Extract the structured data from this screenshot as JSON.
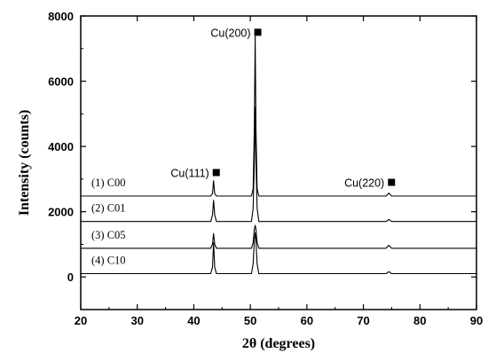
{
  "chart_data": {
    "type": "line",
    "xlabel": "2θ (degrees)",
    "ylabel": "Intensity (counts)",
    "xlim": [
      20,
      90
    ],
    "ylim": [
      -1000,
      8000
    ],
    "xticks": [
      20,
      30,
      40,
      50,
      60,
      70,
      80,
      90
    ],
    "yticks": [
      0,
      2000,
      4000,
      6000,
      8000
    ],
    "grid": false,
    "line_color": "#000000",
    "series": [
      {
        "name": "(1) C00",
        "baseline": 2480,
        "points": [
          [
            20,
            2480
          ],
          [
            43.0,
            2480
          ],
          [
            43.3,
            2560
          ],
          [
            43.5,
            2950
          ],
          [
            43.7,
            2560
          ],
          [
            44.0,
            2480
          ],
          [
            50.2,
            2480
          ],
          [
            50.5,
            2700
          ],
          [
            50.7,
            4500
          ],
          [
            50.85,
            7380
          ],
          [
            51.0,
            4500
          ],
          [
            51.2,
            2700
          ],
          [
            51.5,
            2480
          ],
          [
            74.0,
            2480
          ],
          [
            74.5,
            2570
          ],
          [
            75.0,
            2480
          ],
          [
            90,
            2480
          ]
        ]
      },
      {
        "name": "(2) C01",
        "baseline": 1700,
        "points": [
          [
            20,
            1700
          ],
          [
            43.0,
            1700
          ],
          [
            43.3,
            1900
          ],
          [
            43.5,
            2350
          ],
          [
            43.7,
            1900
          ],
          [
            44.0,
            1700
          ],
          [
            50.2,
            1700
          ],
          [
            50.5,
            2100
          ],
          [
            50.7,
            3500
          ],
          [
            50.85,
            5200
          ],
          [
            51.0,
            3500
          ],
          [
            51.2,
            2100
          ],
          [
            51.5,
            1700
          ],
          [
            74.0,
            1700
          ],
          [
            74.5,
            1760
          ],
          [
            75.0,
            1700
          ],
          [
            90,
            1700
          ]
        ]
      },
      {
        "name": "(3) C05",
        "baseline": 880,
        "points": [
          [
            20,
            880
          ],
          [
            43.0,
            880
          ],
          [
            43.3,
            1000
          ],
          [
            43.5,
            1330
          ],
          [
            43.7,
            1000
          ],
          [
            44.0,
            880
          ],
          [
            50.2,
            880
          ],
          [
            50.5,
            1050
          ],
          [
            50.7,
            1450
          ],
          [
            50.85,
            1580
          ],
          [
            51.0,
            1450
          ],
          [
            51.2,
            1050
          ],
          [
            51.5,
            880
          ],
          [
            74.0,
            880
          ],
          [
            74.5,
            970
          ],
          [
            75.0,
            880
          ],
          [
            90,
            880
          ]
        ]
      },
      {
        "name": "(4) C10",
        "baseline": 100,
        "points": [
          [
            20,
            100
          ],
          [
            43.0,
            100
          ],
          [
            43.3,
            300
          ],
          [
            43.5,
            1050
          ],
          [
            43.7,
            300
          ],
          [
            44.0,
            100
          ],
          [
            50.2,
            100
          ],
          [
            50.5,
            400
          ],
          [
            50.7,
            1100
          ],
          [
            50.85,
            1350
          ],
          [
            51.0,
            1100
          ],
          [
            51.2,
            400
          ],
          [
            51.5,
            100
          ],
          [
            74.0,
            100
          ],
          [
            74.5,
            160
          ],
          [
            75.0,
            100
          ],
          [
            90,
            100
          ]
        ]
      }
    ],
    "annotations": [
      {
        "text": "Cu(200)",
        "x": 50.85,
        "y": 7500
      },
      {
        "text": "Cu(111)",
        "x": 43.5,
        "y": 3200
      },
      {
        "text": "Cu(220)",
        "x": 74.5,
        "y": 2900
      }
    ]
  }
}
